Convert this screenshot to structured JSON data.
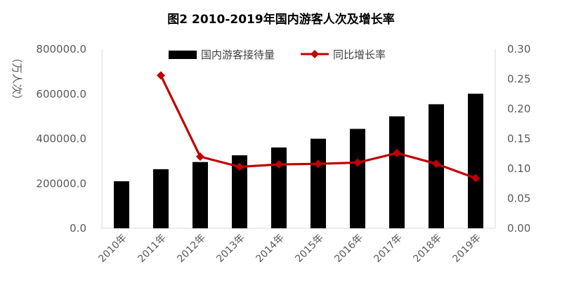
{
  "chart_data": {
    "type": "bar+line",
    "title": "图2    2010-2019年国内游客人次及增长率",
    "ylabel": "（万人次）",
    "categories": [
      "2010年",
      "2011年",
      "2012年",
      "2013年",
      "2014年",
      "2015年",
      "2016年",
      "2017年",
      "2018年",
      "2019年"
    ],
    "series": [
      {
        "name": "国内游客接待量",
        "type": "bar",
        "axis": "left",
        "color": "#000000",
        "values": [
          210000,
          264000,
          296000,
          326000,
          361000,
          400000,
          444000,
          500000,
          554000,
          601000
        ]
      },
      {
        "name": "同比增长率",
        "type": "line",
        "axis": "right",
        "color": "#C00000",
        "values": [
          null,
          0.256,
          0.12,
          0.103,
          0.107,
          0.108,
          0.11,
          0.126,
          0.108,
          0.084
        ]
      }
    ],
    "ylim_left": [
      0,
      800000
    ],
    "yticks_left": [
      "0.0",
      "200000.0",
      "400000.0",
      "600000.0",
      "800000.0"
    ],
    "ylim_right": [
      0,
      0.3
    ],
    "yticks_right": [
      "0.00",
      "0.05",
      "0.10",
      "0.15",
      "0.20",
      "0.25",
      "0.30"
    ],
    "grid": false,
    "legend_position": "top"
  }
}
